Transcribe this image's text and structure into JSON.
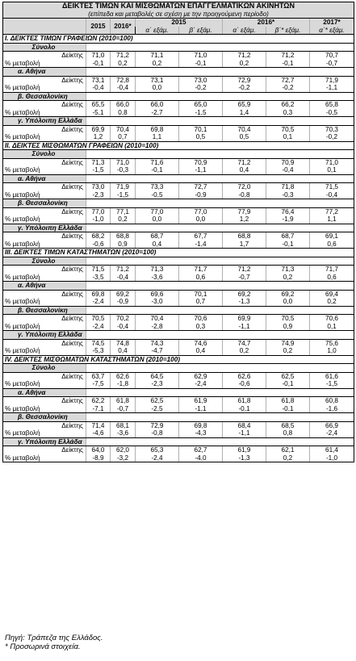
{
  "title": "ΔΕΙΚΤΕΣ ΤΙΜΩΝ ΚΑΙ ΜΙΣΘΩΜΑΤΩΝ ΕΠΑΓΓΕΛΜΑΤΙΚΩΝ ΑΚΙΝΗΤΩΝ",
  "subtitle": "(επίπεδα και μεταβολές σε σχέση με την προηγούμενη περίοδο)",
  "header": {
    "col_2015": "2015",
    "col_2016": "2016*",
    "group_2015": "2015",
    "group_2016": "2016*",
    "group_2017": "2017*",
    "quarters": [
      "α΄ εξάμ.",
      "β΄ εξάμ.",
      "α΄ εξάμ.",
      "β΄* εξάμ.",
      "α΄* εξάμ."
    ]
  },
  "row_labels": {
    "index": "Δείκτης",
    "change": "% μεταβολή"
  },
  "sections": [
    {
      "title": "I. ΔΕΙΚΤΕΣ ΤΙΜΩΝ ΓΡΑΦΕΙΩΝ (2010=100)",
      "groups": [
        {
          "name": "Σύνολο",
          "align": "left",
          "index": [
            "71,0",
            "71,2",
            "71,1",
            "71,0",
            "71,2",
            "71,2",
            "70,7"
          ],
          "change": [
            "-0,1",
            "0,2",
            "0,2",
            "-0,1",
            "0,2",
            "-0,1",
            "-0,7"
          ]
        },
        {
          "name": "α. Αθήνα",
          "align": "left",
          "index": [
            "73,1",
            "72,8",
            "73,1",
            "73,0",
            "72,9",
            "72,7",
            "71,9"
          ],
          "change": [
            "-0,4",
            "-0,4",
            "0,0",
            "-0,2",
            "-0,2",
            "-0,2",
            "-1,1"
          ]
        },
        {
          "name": "β. Θεσσαλονίκη",
          "align": "left",
          "index": [
            "65,5",
            "66,0",
            "66,0",
            "65,0",
            "65,9",
            "66,2",
            "65,8"
          ],
          "change": [
            "-5,1",
            "0,8",
            "-2,7",
            "-1,5",
            "1,4",
            "0,3",
            "-0,5"
          ]
        },
        {
          "name": "γ. Υπόλοιπη Ελλάδα",
          "align": "left",
          "index": [
            "69,9",
            "70,4",
            "69,8",
            "70,1",
            "70,4",
            "70,5",
            "70,3"
          ],
          "change": [
            "1,2",
            "0,7",
            "1,1",
            "0,5",
            "0,5",
            "0,1",
            "-0,2"
          ]
        }
      ]
    },
    {
      "title": "II. ΔΕΙΚΤΕΣ ΜΙΣΘΩΜΑΤΩΝ ΓΡΑΦΕΙΩΝ (2010=100)",
      "groups": [
        {
          "name": "Σύνολο",
          "align": "left",
          "index": [
            "71,3",
            "71,0",
            "71,6",
            "70,9",
            "71,2",
            "70,9",
            "71,0"
          ],
          "change": [
            "-1,5",
            "-0,3",
            "-0,1",
            "-1,1",
            "0,4",
            "-0,4",
            "0,1"
          ]
        },
        {
          "name": "α. Αθήνα",
          "align": "left",
          "index": [
            "73,0",
            "71,9",
            "73,3",
            "72,7",
            "72,0",
            "71,8",
            "71,5"
          ],
          "change": [
            "-2,3",
            "-1,5",
            "-0,5",
            "-0,9",
            "-0,8",
            "-0,3",
            "-0,4"
          ]
        },
        {
          "name": "β. Θεσσαλονίκη",
          "align": "left",
          "index": [
            "77,0",
            "77,1",
            "77,0",
            "77,0",
            "77,9",
            "76,4",
            "77,2"
          ],
          "change": [
            "-1,0",
            "0,2",
            "0,0",
            "0,0",
            "1,2",
            "-1,9",
            "1,1"
          ]
        },
        {
          "name": "γ. Υπόλοιπη Ελλάδα",
          "align": "left",
          "index": [
            "68,2",
            "68,8",
            "68,7",
            "67,7",
            "68,8",
            "68,7",
            "69,1"
          ],
          "change": [
            "-0,6",
            "0,9",
            "0,4",
            "-1,4",
            "1,7",
            "-0,1",
            "0,6"
          ]
        }
      ]
    },
    {
      "title": "III. ΔΕΙΚΤΕΣ ΤΙΜΩΝ ΚΑΤΑΣΤΗΜΑΤΩΝ (2010=100)",
      "groups": [
        {
          "name": "Σύνολο",
          "align": "left",
          "index": [
            "71,5",
            "71,2",
            "71,3",
            "71,7",
            "71,2",
            "71,3",
            "71,7"
          ],
          "change": [
            "-3,5",
            "-0,4",
            "-3,6",
            "0,6",
            "-0,7",
            "0,2",
            "0,6"
          ]
        },
        {
          "name": "α. Αθήνα",
          "align": "left",
          "index": [
            "69,8",
            "69,2",
            "69,6",
            "70,1",
            "69,2",
            "69,2",
            "69,4"
          ],
          "change": [
            "-2,4",
            "-0,9",
            "-3,0",
            "0,7",
            "-1,3",
            "0,0",
            "0,2"
          ]
        },
        {
          "name": "β. Θεσσαλονίκη",
          "align": "left",
          "index": [
            "70,5",
            "70,2",
            "70,4",
            "70,6",
            "69,9",
            "70,5",
            "70,6"
          ],
          "change": [
            "-2,4",
            "-0,4",
            "-2,8",
            "0,3",
            "-1,1",
            "0,9",
            "0,1"
          ]
        },
        {
          "name": "γ. Υπόλοιπη Ελλάδα",
          "align": "left",
          "index": [
            "74,5",
            "74,8",
            "74,3",
            "74,6",
            "74,7",
            "74,9",
            "75,6"
          ],
          "change": [
            "-5,3",
            "0,4",
            "-4,7",
            "0,4",
            "0,2",
            "0,2",
            "1,0"
          ]
        }
      ]
    },
    {
      "title": "IV. ΔΕΙΚΤΕΣ ΜΙΣΘΩΜΑΤΩΝ ΚΑΤΑΣΤΗΜΑΤΩΝ (2010=100)",
      "groups": [
        {
          "name": "Σύνολο",
          "align": "left",
          "index": [
            "63,7",
            "62,6",
            "64,5",
            "62,9",
            "62,6",
            "62,5",
            "61,6"
          ],
          "change": [
            "-7,5",
            "-1,8",
            "-2,3",
            "-2,4",
            "-0,6",
            "-0,1",
            "-1,5"
          ]
        },
        {
          "name": "α. Αθήνα",
          "align": "left",
          "index": [
            "62,2",
            "61,8",
            "62,5",
            "61,9",
            "61,8",
            "61,8",
            "60,8"
          ],
          "change": [
            "-7,1",
            "-0,7",
            "-2,5",
            "-1,1",
            "-0,1",
            "-0,1",
            "-1,6"
          ]
        },
        {
          "name": "β. Θεσσαλονίκη",
          "align": "left",
          "index": [
            "71,4",
            "68,1",
            "72,9",
            "69,8",
            "68,4",
            "68,5",
            "66,9"
          ],
          "change": [
            "-4,6",
            "-3,6",
            "-0,8",
            "-4,3",
            "-1,1",
            "0,8",
            "-2,4"
          ]
        },
        {
          "name": "γ. Υπόλοιπη Ελλάδα",
          "align": "left",
          "index": [
            "64,0",
            "62,0",
            "65,3",
            "62,7",
            "61,9",
            "62,1",
            "61,4"
          ],
          "change": [
            "-8,9",
            "-3,2",
            "-2,4",
            "-4,0",
            "-1,3",
            "0,2",
            "-1,0"
          ]
        }
      ]
    }
  ],
  "notes": {
    "source": "Πηγή: Τράπεζα της Ελλάδος.",
    "provisional": "* Προσωρινά στοιχεία."
  }
}
